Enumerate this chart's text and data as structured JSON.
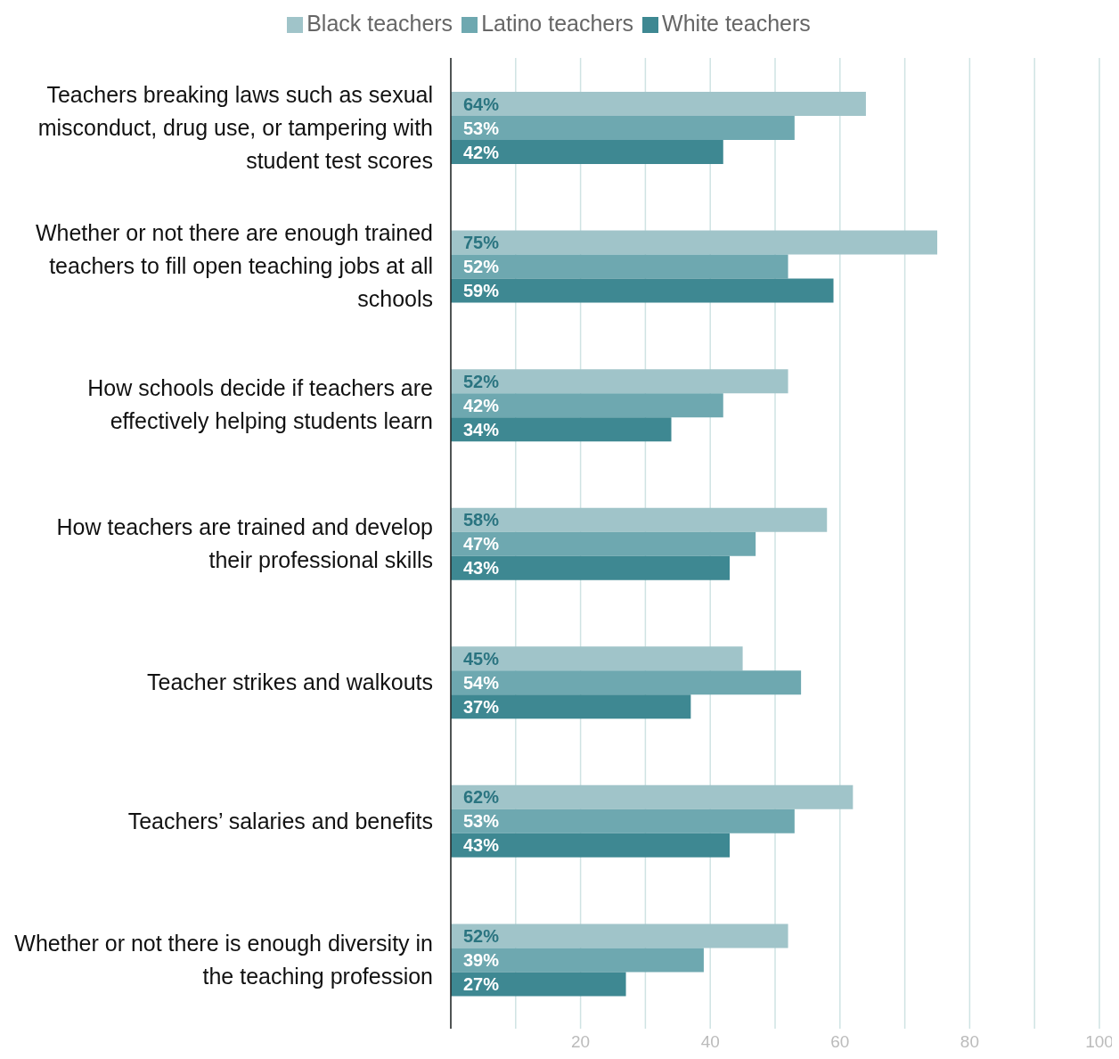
{
  "chart_data": {
    "type": "bar",
    "orientation": "horizontal",
    "categories": [
      "Teachers breaking laws such as sexual misconduct, drug use, or tampering with student test scores",
      "Whether or not there are enough trained teachers to fill open teaching jobs at all schools",
      "How schools decide if teachers are effectively helping students learn",
      "How teachers are trained and develop their professional skills",
      "Teacher strikes and walkouts",
      "Teachers’ salaries and benefits",
      "Whether or not there is enough diversity in the teaching profession"
    ],
    "series": [
      {
        "name": "Black teachers",
        "color": "#a0c4c9",
        "values": [
          64,
          75,
          52,
          58,
          45,
          62,
          52
        ],
        "value_labels": [
          "64%",
          "75%",
          "52%",
          "58%",
          "45%",
          "62%",
          "52%"
        ]
      },
      {
        "name": "Latino teachers",
        "color": "#6ea8b0",
        "values": [
          53,
          52,
          42,
          47,
          54,
          53,
          39
        ],
        "value_labels": [
          "53%",
          "52%",
          "42%",
          "47%",
          "54%",
          "53%",
          "39%"
        ]
      },
      {
        "name": "White teachers",
        "color": "#3e8892",
        "values": [
          42,
          59,
          34,
          43,
          37,
          43,
          27
        ],
        "value_labels": [
          "42%",
          "59%",
          "34%",
          "43%",
          "37%",
          "43%",
          "27%"
        ]
      }
    ],
    "xlim": [
      0,
      100
    ],
    "xticks": [
      {
        "value": 0,
        "label": null
      },
      {
        "value": 10,
        "label": null
      },
      20,
      {
        "value": 30,
        "label": null
      },
      40,
      {
        "value": 50,
        "label": null
      },
      60,
      {
        "value": 70,
        "label": null
      },
      80,
      {
        "value": 90,
        "label": null
      },
      100
    ],
    "grid": "x",
    "legend": "top"
  }
}
